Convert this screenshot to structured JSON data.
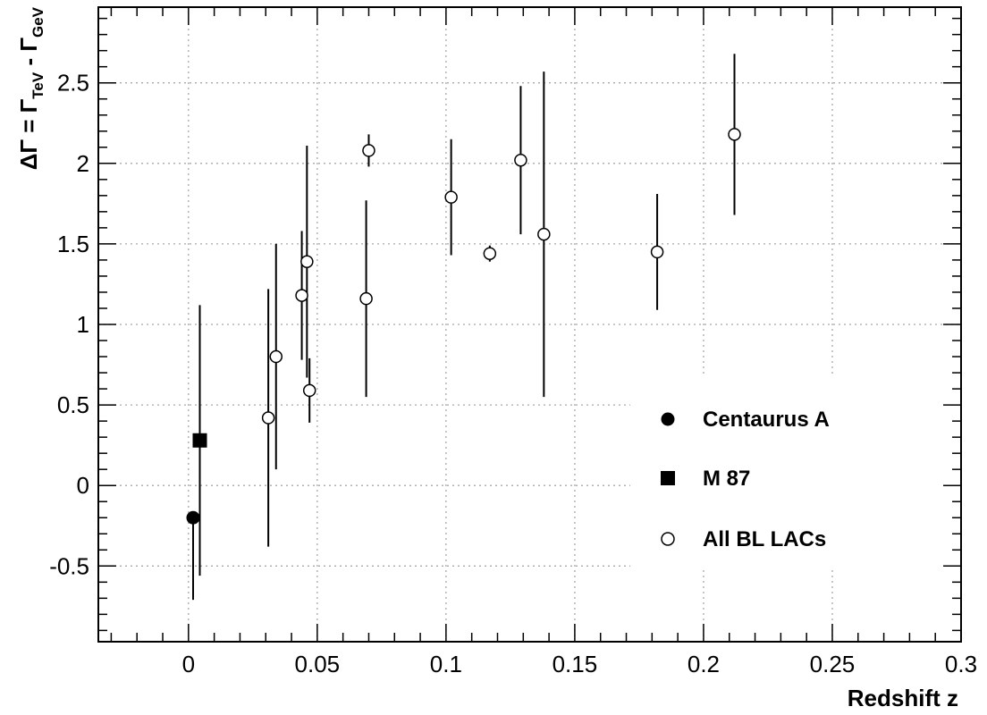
{
  "chart_data": {
    "type": "scatter",
    "xlabel": "Redshift z",
    "ylabel_parts": {
      "lhs": "ΔΓ = Γ",
      "sub1": "TeV",
      "mid": " - Γ",
      "sub2": "GeV"
    },
    "xlim": [
      -0.035,
      0.3
    ],
    "ylim": [
      -0.97,
      2.97
    ],
    "x_ticks": [
      {
        "value": 0,
        "label": "0"
      },
      {
        "value": 0.05,
        "label": "0.05"
      },
      {
        "value": 0.1,
        "label": "0.1"
      },
      {
        "value": 0.15,
        "label": "0.15"
      },
      {
        "value": 0.2,
        "label": "0.2"
      },
      {
        "value": 0.25,
        "label": "0.25"
      },
      {
        "value": 0.3,
        "label": "0.3"
      }
    ],
    "y_ticks": [
      {
        "value": -0.5,
        "label": "-0.5"
      },
      {
        "value": 0,
        "label": "0"
      },
      {
        "value": 0.5,
        "label": "0.5"
      },
      {
        "value": 1,
        "label": "1"
      },
      {
        "value": 1.5,
        "label": "1.5"
      },
      {
        "value": 2,
        "label": "2"
      },
      {
        "value": 2.5,
        "label": "2.5"
      }
    ],
    "grid": true,
    "legend_position": "lower-right",
    "series": [
      {
        "name": "Centaurus A",
        "marker": "filled-circle",
        "points": [
          {
            "x": 0.0018,
            "y": -0.2,
            "ylo": -0.71,
            "yhi": -0.2
          }
        ]
      },
      {
        "name": "M 87",
        "marker": "filled-square",
        "points": [
          {
            "x": 0.0044,
            "y": 0.28,
            "ylo": -0.56,
            "yhi": 1.12
          }
        ]
      },
      {
        "name": "All BL LACs",
        "marker": "open-circle",
        "points": [
          {
            "x": 0.031,
            "y": 0.42,
            "ylo": -0.38,
            "yhi": 1.22
          },
          {
            "x": 0.034,
            "y": 0.8,
            "ylo": 0.1,
            "yhi": 1.5
          },
          {
            "x": 0.044,
            "y": 1.18,
            "ylo": 0.78,
            "yhi": 1.58
          },
          {
            "x": 0.046,
            "y": 1.39,
            "ylo": 0.67,
            "yhi": 2.11
          },
          {
            "x": 0.047,
            "y": 0.59,
            "ylo": 0.39,
            "yhi": 0.79
          },
          {
            "x": 0.069,
            "y": 1.16,
            "ylo": 0.55,
            "yhi": 1.77
          },
          {
            "x": 0.07,
            "y": 2.08,
            "ylo": 1.98,
            "yhi": 2.18
          },
          {
            "x": 0.102,
            "y": 1.79,
            "ylo": 1.43,
            "yhi": 2.15
          },
          {
            "x": 0.117,
            "y": 1.44,
            "ylo": 1.39,
            "yhi": 1.49
          },
          {
            "x": 0.129,
            "y": 2.02,
            "ylo": 1.56,
            "yhi": 2.48
          },
          {
            "x": 0.138,
            "y": 1.56,
            "ylo": 0.55,
            "yhi": 2.57
          },
          {
            "x": 0.182,
            "y": 1.45,
            "ylo": 1.09,
            "yhi": 1.81
          },
          {
            "x": 0.212,
            "y": 2.18,
            "ylo": 1.68,
            "yhi": 2.68
          }
        ]
      }
    ]
  }
}
